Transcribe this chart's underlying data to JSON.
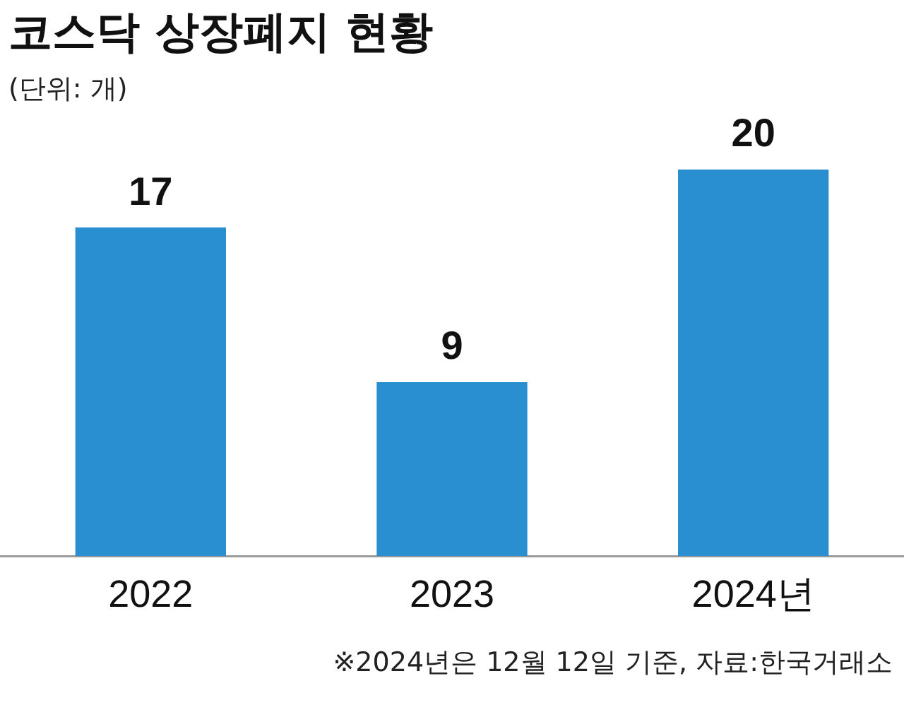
{
  "chart_data": {
    "type": "bar",
    "title": "코스닥 상장폐지 현황",
    "subtitle": "(단위: 개)",
    "categories": [
      "2022",
      "2023",
      "2024년"
    ],
    "values": [
      17,
      9,
      20
    ],
    "color": "#2a8fd0",
    "data_labels": true,
    "grid": false,
    "legend": false,
    "tick_labels": "x",
    "annotations": [
      "※2024년은 12월 12일 기준, 자료:한국거래소"
    ]
  }
}
